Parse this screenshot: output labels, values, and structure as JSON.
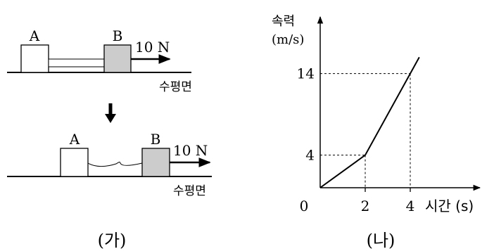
{
  "left": {
    "top_scene": {
      "block_a": "A",
      "block_b": "B",
      "force": "10 N",
      "surface": "수평면"
    },
    "bottom_scene": {
      "block_a": "A",
      "block_b": "B",
      "force": "10 N",
      "surface": "수평면"
    },
    "caption": "(가)"
  },
  "right": {
    "caption": "(나)",
    "chart_data": {
      "type": "line",
      "ylabel_line1": "속력",
      "ylabel_line2": "(m/s)",
      "xlabel": "시간 (s)",
      "origin_label": "0",
      "x_ticks": [
        {
          "value": 2,
          "label": "2"
        },
        {
          "value": 4,
          "label": "4"
        }
      ],
      "y_ticks": [
        {
          "value": 4,
          "label": "4"
        },
        {
          "value": 14,
          "label": "14"
        }
      ],
      "points": [
        {
          "x": 0,
          "y": 0
        },
        {
          "x": 2,
          "y": 4
        },
        {
          "x": 4,
          "y": 14
        },
        {
          "x": 4.4,
          "y": 16
        }
      ],
      "guides": [
        {
          "x": 2,
          "y": 4
        },
        {
          "x": 4,
          "y": 14
        }
      ]
    }
  }
}
